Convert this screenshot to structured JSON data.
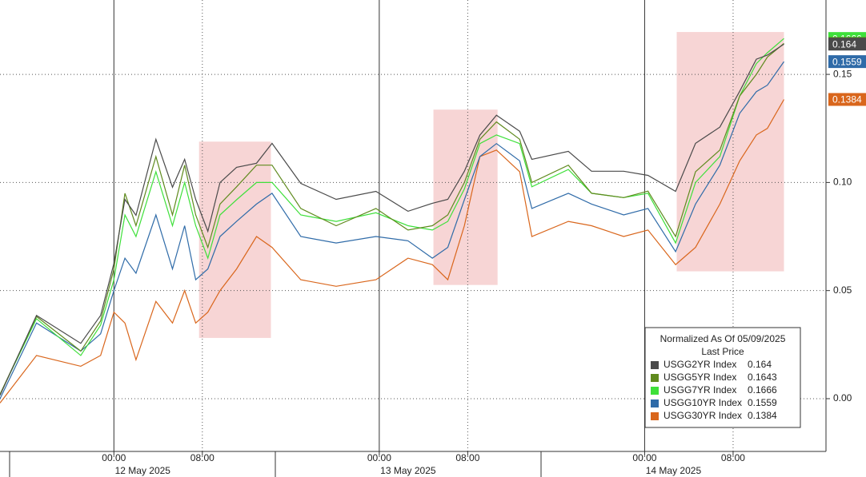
{
  "chart_data": {
    "type": "line",
    "x": [
      -10.3,
      -7,
      -3,
      -1.2,
      0,
      1,
      2,
      3.8,
      5.3,
      6.4,
      7.4,
      8.5,
      9.6,
      11.1,
      12.9,
      14.3,
      16.9,
      20.1,
      23.7,
      26.6,
      28.8,
      30.2,
      31.7,
      33.1,
      34.6,
      36.7,
      37.8,
      41.1,
      43.2,
      46.1,
      48.3,
      50.8,
      52.6,
      54.8,
      56.6,
      58.1,
      59.1,
      60.6
    ],
    "series": [
      {
        "name": "USGG2YR Index",
        "color": "#4a4a4a",
        "last_label": "0.164",
        "values": [
          0.0015,
          0.0385,
          0.0256,
          0.0385,
          0.0626,
          0.0922,
          0.0848,
          0.12,
          0.0978,
          0.1107,
          0.0922,
          0.0774,
          0.1,
          0.107,
          0.1089,
          0.1181,
          0.0996,
          0.0922,
          0.0959,
          0.0867,
          0.0904,
          0.0922,
          0.1052,
          0.1219,
          0.1311,
          0.1237,
          0.1107,
          0.1144,
          0.1052,
          0.1052,
          0.1033,
          0.0959,
          0.1181,
          0.1256,
          0.1422,
          0.157,
          0.1589,
          0.164
        ]
      },
      {
        "name": "USGG5YR Index",
        "color": "#5f8a1e",
        "last_label": "0.1643",
        "values": [
          0.002,
          0.038,
          0.022,
          0.036,
          0.06,
          0.095,
          0.08,
          0.112,
          0.085,
          0.108,
          0.085,
          0.07,
          0.09,
          0.098,
          0.108,
          0.108,
          0.088,
          0.08,
          0.088,
          0.078,
          0.08,
          0.085,
          0.1,
          0.12,
          0.128,
          0.12,
          0.1,
          0.108,
          0.095,
          0.093,
          0.096,
          0.075,
          0.105,
          0.115,
          0.14,
          0.15,
          0.158,
          0.1643
        ]
      },
      {
        "name": "USGG7YR Index",
        "color": "#3ee03a",
        "last_label": "0.1666",
        "values": [
          0.002,
          0.037,
          0.02,
          0.034,
          0.055,
          0.085,
          0.075,
          0.105,
          0.08,
          0.1,
          0.08,
          0.065,
          0.085,
          0.092,
          0.1,
          0.1,
          0.085,
          0.082,
          0.086,
          0.08,
          0.078,
          0.082,
          0.097,
          0.118,
          0.122,
          0.118,
          0.098,
          0.106,
          0.095,
          0.093,
          0.095,
          0.072,
          0.1,
          0.112,
          0.14,
          0.155,
          0.16,
          0.1666
        ]
      },
      {
        "name": "USGG10YR Index",
        "color": "#2f6ba8",
        "last_label": "0.1559",
        "values": [
          0,
          0.035,
          0.022,
          0.03,
          0.05,
          0.065,
          0.058,
          0.085,
          0.06,
          0.08,
          0.055,
          0.06,
          0.075,
          0.082,
          0.09,
          0.095,
          0.075,
          0.072,
          0.075,
          0.073,
          0.065,
          0.07,
          0.092,
          0.112,
          0.118,
          0.11,
          0.088,
          0.095,
          0.09,
          0.085,
          0.088,
          0.068,
          0.09,
          0.108,
          0.132,
          0.142,
          0.145,
          0.1559
        ]
      },
      {
        "name": "USGG30YR Index",
        "color": "#d9661c",
        "last_label": "0.1384",
        "values": [
          -0.002,
          0.02,
          0.015,
          0.02,
          0.04,
          0.035,
          0.018,
          0.045,
          0.035,
          0.05,
          0.035,
          0.04,
          0.05,
          0.06,
          0.075,
          0.07,
          0.055,
          0.052,
          0.055,
          0.065,
          0.062,
          0.055,
          0.08,
          0.112,
          0.115,
          0.105,
          0.075,
          0.082,
          0.08,
          0.075,
          0.078,
          0.062,
          0.07,
          0.09,
          0.11,
          0.122,
          0.125,
          0.1384
        ]
      }
    ],
    "xlim": [
      -10.3,
      64.4
    ],
    "xticks": [
      {
        "value": 0,
        "label": "00:00"
      },
      {
        "value": 8,
        "label": "08:00"
      },
      {
        "value": 24,
        "label": "00:00"
      },
      {
        "value": 32,
        "label": "08:00"
      },
      {
        "value": 48,
        "label": "00:00"
      },
      {
        "value": 56,
        "label": "08:00"
      }
    ],
    "date_labels": [
      "12 May 2025",
      "13 May 2025",
      "14 May 2025"
    ],
    "ylim": [
      -0.0244,
      0.1844
    ],
    "yticks": [
      {
        "value": 0,
        "label": "0.00"
      },
      0.05,
      {
        "value": 0.1,
        "label": "0.10"
      },
      0.15
    ],
    "grid": true,
    "highlights": [
      {
        "xlim": [
          7.7,
          14.2
        ],
        "ylim": [
          0.0281,
          0.1189
        ]
      },
      {
        "xlim": [
          28.9,
          34.7
        ],
        "ylim": [
          0.0526,
          0.1337
        ]
      },
      {
        "xlim": [
          50.9,
          60.6
        ],
        "ylim": [
          0.0589,
          0.1696
        ]
      }
    ],
    "legend": {
      "title": "Normalized As Of 05/09/2025",
      "subtitle": "Last Price",
      "position": "lower right"
    }
  }
}
